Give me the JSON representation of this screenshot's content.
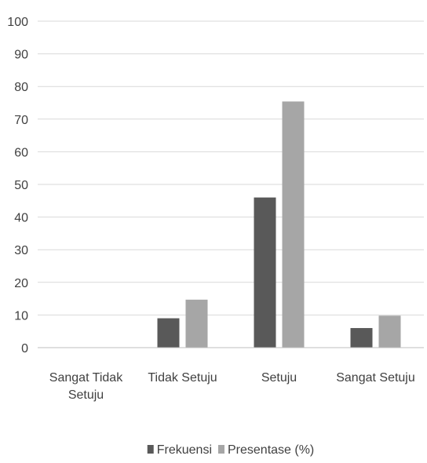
{
  "chart_data": {
    "type": "bar",
    "categories": [
      [
        "Sangat Tidak",
        "Setuju"
      ],
      [
        "Tidak Setuju"
      ],
      [
        "Setuju"
      ],
      [
        "Sangat Setuju"
      ]
    ],
    "series": [
      {
        "name": "Frekuensi",
        "color": "#595959",
        "values": [
          0,
          9,
          46,
          6
        ]
      },
      {
        "name": "Presentase (%)",
        "color": "#a6a6a6",
        "values": [
          0,
          14.7,
          75.4,
          9.8
        ]
      }
    ],
    "ylim": [
      0,
      100
    ],
    "yticks": [
      0,
      10,
      20,
      30,
      40,
      50,
      60,
      70,
      80,
      90,
      100
    ],
    "grid": true,
    "legend_position": "bottom"
  }
}
